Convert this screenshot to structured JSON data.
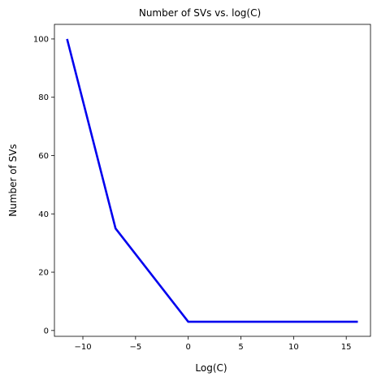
{
  "chart_data": {
    "type": "line",
    "title": "Number of SVs vs. log(C)",
    "xlabel": "Log(C)",
    "ylabel": "Number of SVs",
    "xlim": [
      -12.7,
      17.3
    ],
    "ylim": [
      -2,
      105
    ],
    "xticks": [
      -10,
      -5,
      0,
      5,
      10,
      15
    ],
    "yticks": [
      0,
      20,
      40,
      60,
      80,
      100
    ],
    "grid": false,
    "series": [
      {
        "color": "#0000ee",
        "x": [
          -11.5,
          -6.9,
          0,
          16.1
        ],
        "y": [
          100,
          35,
          3,
          3
        ]
      }
    ]
  }
}
